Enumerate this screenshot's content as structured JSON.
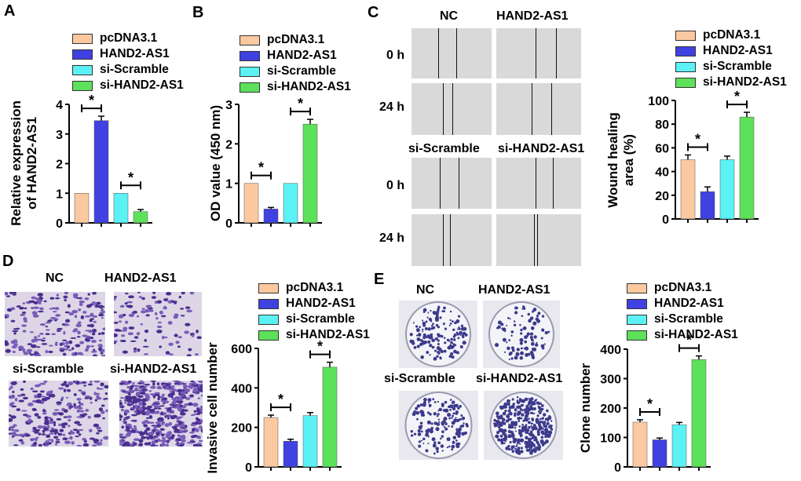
{
  "colors": {
    "pcDNA3.1": "#fbc8a0",
    "HAND2-AS1": "#3f41e0",
    "si-Scramble": "#5cf1f5",
    "si-HAND2-AS1": "#5de05a"
  },
  "legend_labels": [
    "pcDNA3.1",
    "HAND2-AS1",
    "si-Scramble",
    "si-HAND2-AS1"
  ],
  "panels": {
    "A": {
      "letter": "A"
    },
    "B": {
      "letter": "B"
    },
    "C": {
      "letter": "C",
      "col_labels": [
        "NC",
        "HAND2-AS1"
      ],
      "col_labels2": [
        "si-Scramble",
        "si-HAND2-AS1"
      ],
      "row_labels": [
        "0 h",
        "24 h",
        "0 h",
        "24 h"
      ]
    },
    "D": {
      "letter": "D",
      "labels": [
        "NC",
        "HAND2-AS1",
        "si-Scramble",
        "si-HAND2-AS1"
      ]
    },
    "E": {
      "letter": "E",
      "labels": [
        "NC",
        "HAND2-AS1",
        "si-Scramble",
        "si-HAND2-AS1"
      ]
    }
  },
  "chart_data": [
    {
      "id": "A",
      "type": "bar",
      "categories": [
        "pcDNA3.1",
        "HAND2-AS1",
        "si-Scramble",
        "si-HAND2-AS1"
      ],
      "values": [
        1.0,
        3.45,
        1.0,
        0.38
      ],
      "errors": [
        0,
        0.15,
        0,
        0.07
      ],
      "ylabel": "Relative expression of HAND2-AS1",
      "ylabel_lines": [
        "Relative expression",
        "of HAND2-AS1"
      ],
      "ylim": [
        0,
        4
      ],
      "yticks": [
        "0",
        "1",
        "2",
        "3",
        "4"
      ],
      "significance": [
        "*",
        "*"
      ]
    },
    {
      "id": "B",
      "type": "bar",
      "categories": [
        "pcDNA3.1",
        "HAND2-AS1",
        "si-Scramble",
        "si-HAND2-AS1"
      ],
      "values": [
        1.0,
        0.35,
        1.0,
        2.5
      ],
      "errors": [
        0,
        0.04,
        0,
        0.12
      ],
      "ylabel": "OD value (450 nm)",
      "ylabel_lines": [
        "OD value (450 nm)"
      ],
      "ylim": [
        0,
        3
      ],
      "yticks": [
        "0",
        "1",
        "2",
        "3"
      ],
      "significance": [
        "*",
        "*"
      ]
    },
    {
      "id": "C",
      "type": "bar",
      "categories": [
        "pcDNA3.1",
        "HAND2-AS1",
        "si-Scramble",
        "si-HAND2-AS1"
      ],
      "values": [
        50,
        23,
        50,
        86
      ],
      "errors": [
        4,
        4,
        3,
        4
      ],
      "ylabel": "Wound healing area (%)",
      "ylabel_lines": [
        "Wound healing",
        "area (%)"
      ],
      "ylim": [
        0,
        100
      ],
      "yticks": [
        "0",
        "20",
        "40",
        "60",
        "80",
        "100"
      ],
      "significance": [
        "*",
        "*"
      ]
    },
    {
      "id": "D",
      "type": "bar",
      "categories": [
        "pcDNA3.1",
        "HAND2-AS1",
        "si-Scramble",
        "si-HAND2-AS1"
      ],
      "values": [
        250,
        130,
        260,
        505
      ],
      "errors": [
        12,
        10,
        15,
        25
      ],
      "ylabel": "Invasive cell number",
      "ylabel_lines": [
        "Invasive cell number"
      ],
      "ylim": [
        0,
        600
      ],
      "yticks": [
        "0",
        "200",
        "400",
        "600"
      ],
      "significance": [
        "*",
        "*"
      ]
    },
    {
      "id": "E",
      "type": "bar",
      "categories": [
        "pcDNA3.1",
        "HAND2-AS1",
        "si-Scramble",
        "si-HAND2-AS1"
      ],
      "values": [
        152,
        92,
        143,
        365
      ],
      "errors": [
        8,
        6,
        8,
        12
      ],
      "ylabel": "Clone number",
      "ylabel_lines": [
        "Clone number"
      ],
      "ylim": [
        0,
        400
      ],
      "yticks": [
        "0",
        "100",
        "200",
        "300",
        "400"
      ],
      "significance": [
        "*",
        "*"
      ]
    }
  ]
}
